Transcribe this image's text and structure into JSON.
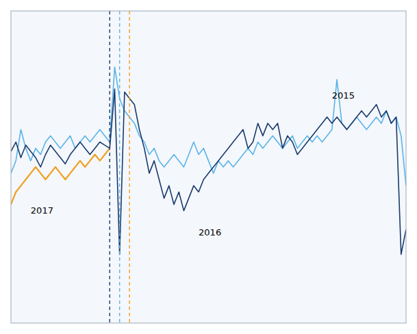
{
  "chart_data": {
    "type": "line",
    "series": [
      {
        "color": "#5ab4e8",
        "values": [
          48,
          52,
          62,
          56,
          52,
          56,
          54,
          58,
          60,
          58,
          56,
          58,
          60,
          56,
          58,
          60,
          58,
          60,
          62,
          60,
          58,
          82,
          72,
          68,
          66,
          64,
          60,
          58,
          54,
          56,
          52,
          50,
          52,
          54,
          52,
          50,
          54,
          58,
          54,
          56,
          52,
          48,
          52,
          50,
          52,
          50,
          52,
          54,
          56,
          54,
          58,
          56,
          58,
          60,
          58,
          56,
          58,
          60,
          56,
          58,
          60,
          58,
          60,
          58,
          60,
          62,
          78,
          64,
          62,
          64,
          66,
          64,
          62,
          64,
          66,
          64,
          68,
          64,
          66,
          60,
          44
        ]
      },
      {
        "color": "#1a3a6b",
        "values": [
          55,
          58,
          53,
          57,
          55,
          53,
          50,
          54,
          57,
          55,
          53,
          51,
          54,
          56,
          58,
          56,
          54,
          56,
          58,
          57,
          56,
          75,
          22,
          74,
          72,
          70,
          62,
          56,
          48,
          52,
          46,
          40,
          44,
          38,
          42,
          36,
          40,
          44,
          42,
          46,
          48,
          50,
          52,
          54,
          56,
          58,
          60,
          62,
          56,
          58,
          64,
          60,
          64,
          62,
          64,
          56,
          60,
          58,
          54,
          56,
          58,
          60,
          62,
          64,
          66,
          64,
          66,
          64,
          62,
          64,
          66,
          68,
          66,
          68,
          70,
          66,
          68,
          64,
          66,
          22,
          30
        ]
      },
      {
        "color": "#f0a020",
        "values": [
          38,
          42,
          44,
          46,
          48,
          50,
          48,
          46,
          48,
          50,
          48,
          46,
          48,
          50,
          52,
          50,
          52,
          54,
          52,
          54,
          56
        ]
      }
    ],
    "vlines": [
      {
        "value": 20,
        "color": "#1a3a6b",
        "line_style": "dashed"
      },
      {
        "value": 22,
        "color": "#5ab4e8",
        "line_style": "dashed"
      },
      {
        "value": 24,
        "color": "#f0a020",
        "line_style": "dashed"
      }
    ],
    "annotations": [
      {
        "text": "2017",
        "x": 4,
        "y": 35
      },
      {
        "text": "2016",
        "x": 38,
        "y": 28
      },
      {
        "text": "2015",
        "x": 65,
        "y": 72
      }
    ],
    "xlim": [
      0,
      80
    ],
    "ylim": [
      0,
      100
    ],
    "grid": false,
    "tick_labels": false
  }
}
